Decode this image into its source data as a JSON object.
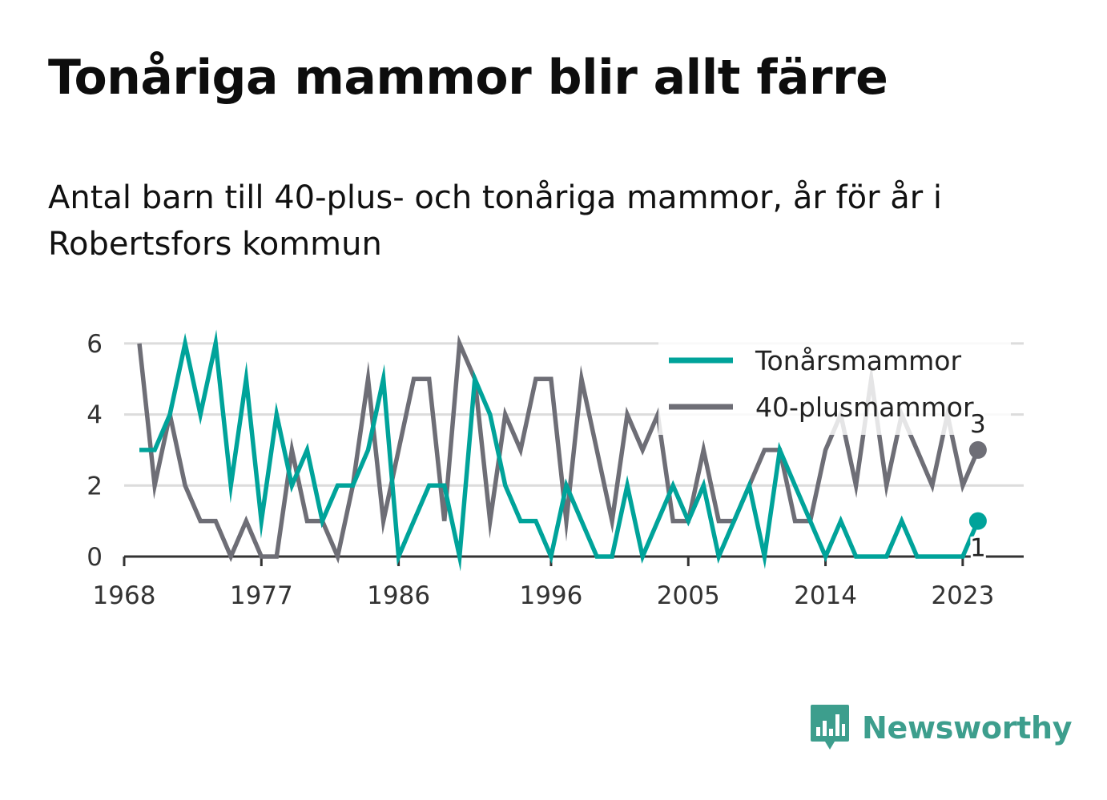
{
  "header": {
    "title": "Tonåriga mammor blir allt färre",
    "subtitle": "Antal barn till 40-plus- och tonåriga mammor, år för år i Robertsfors kommun"
  },
  "brand": {
    "name": "Newsworthy",
    "icon": "newsworthy-bar-chart-icon",
    "color": "#3d9e8d"
  },
  "chart_data": {
    "type": "line",
    "x": [
      1969,
      1970,
      1971,
      1972,
      1973,
      1974,
      1975,
      1976,
      1977,
      1978,
      1979,
      1980,
      1981,
      1982,
      1983,
      1984,
      1985,
      1986,
      1987,
      1988,
      1989,
      1990,
      1991,
      1992,
      1993,
      1994,
      1995,
      1996,
      1997,
      1998,
      1999,
      2000,
      2001,
      2002,
      2003,
      2004,
      2005,
      2006,
      2007,
      2008,
      2009,
      2010,
      2011,
      2012,
      2013,
      2014,
      2015,
      2016,
      2017,
      2018,
      2019,
      2020,
      2021,
      2022,
      2023,
      2024
    ],
    "series": [
      {
        "name": "Tonårsmammor",
        "color": "#00a39a",
        "values": [
          3,
          3,
          4,
          6,
          4,
          6,
          2,
          5,
          1,
          4,
          2,
          3,
          1,
          2,
          2,
          3,
          5,
          0,
          1,
          2,
          2,
          0,
          5,
          4,
          2,
          1,
          1,
          0,
          2,
          1,
          0,
          0,
          2,
          0,
          1,
          2,
          1,
          2,
          0,
          1,
          2,
          0,
          3,
          2,
          1,
          0,
          1,
          0,
          0,
          0,
          1,
          0,
          0,
          0,
          0,
          1
        ],
        "end_label": "1"
      },
      {
        "name": "40-plusmammor",
        "color": "#6e6e76",
        "values": [
          6,
          2,
          4,
          2,
          1,
          1,
          0,
          1,
          0,
          0,
          3,
          1,
          1,
          0,
          2,
          5,
          1,
          3,
          5,
          5,
          1,
          6,
          5,
          1,
          4,
          3,
          5,
          5,
          1,
          5,
          3,
          1,
          4,
          3,
          4,
          1,
          1,
          3,
          1,
          1,
          2,
          3,
          3,
          1,
          1,
          3,
          4,
          2,
          5,
          2,
          4,
          3,
          2,
          4,
          2,
          3
        ],
        "end_label": "3"
      }
    ],
    "x_ticks": [
      1968,
      1977,
      1986,
      1996,
      2005,
      2014,
      2023
    ],
    "y_ticks": [
      0,
      2,
      4,
      6
    ],
    "xlim": [
      1968,
      2027
    ],
    "ylim": [
      0,
      6.2
    ],
    "grid": true,
    "legend": "top-right"
  }
}
